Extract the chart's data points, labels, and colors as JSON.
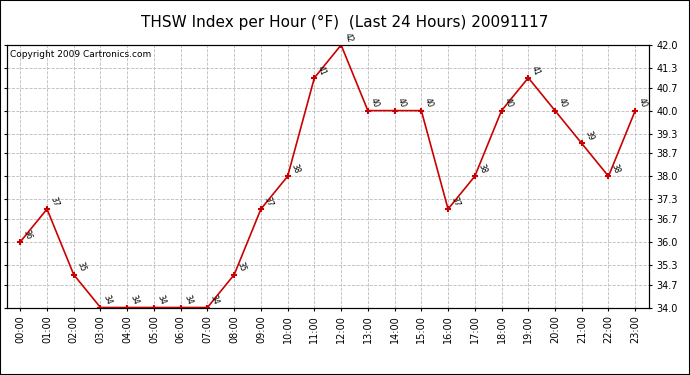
{
  "title": "THSW Index per Hour (°F)  (Last 24 Hours) 20091117",
  "copyright": "Copyright 2009 Cartronics.com",
  "hours": [
    "00:00",
    "01:00",
    "02:00",
    "03:00",
    "04:00",
    "05:00",
    "06:00",
    "07:00",
    "08:00",
    "09:00",
    "10:00",
    "11:00",
    "12:00",
    "13:00",
    "14:00",
    "15:00",
    "16:00",
    "17:00",
    "18:00",
    "19:00",
    "20:00",
    "21:00",
    "22:00",
    "23:00"
  ],
  "values": [
    36,
    37,
    35,
    34,
    34,
    34,
    34,
    34,
    35,
    37,
    38,
    41,
    42,
    40,
    40,
    40,
    37,
    38,
    40,
    41,
    40,
    39,
    38,
    40
  ],
  "ylim_min": 34.0,
  "ylim_max": 42.0,
  "yticks": [
    34.0,
    34.7,
    35.3,
    36.0,
    36.7,
    37.3,
    38.0,
    38.7,
    39.3,
    40.0,
    40.7,
    41.3,
    42.0
  ],
  "line_color": "#cc0000",
  "marker_color": "#cc0000",
  "bg_color": "#ffffff",
  "grid_color": "#bbbbbb",
  "title_fontsize": 11,
  "label_fontsize": 7,
  "copyright_fontsize": 6.5
}
